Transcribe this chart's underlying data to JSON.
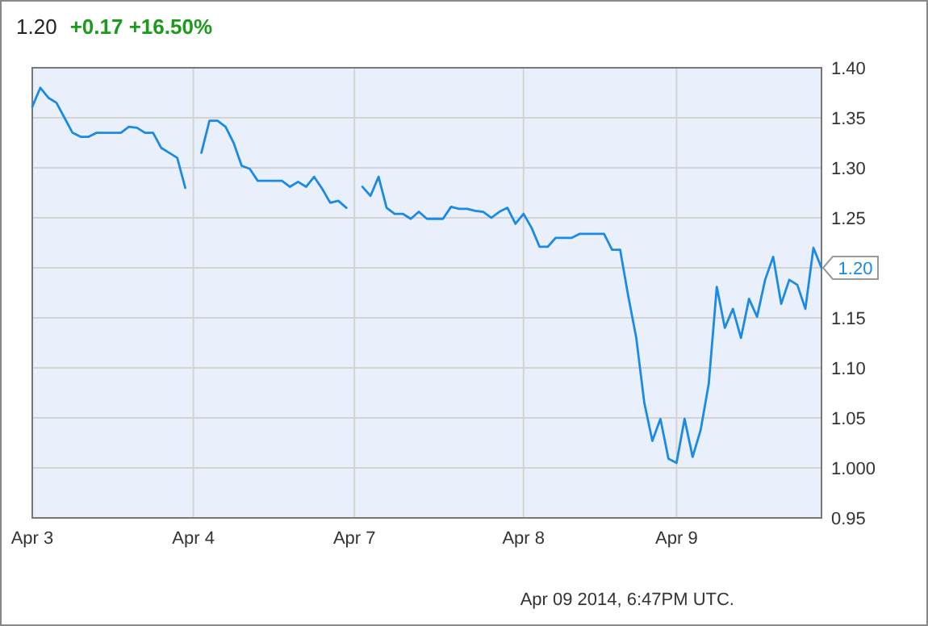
{
  "chart_data": {
    "type": "line",
    "title": "1.20",
    "subtitle": "+0.17  +16.50%",
    "categories": [
      "Apr 3",
      null,
      null,
      null,
      null,
      null,
      null,
      null,
      null,
      null,
      null,
      null,
      null,
      null,
      null,
      null,
      null,
      null,
      null,
      null,
      "Apr 4",
      null,
      null,
      null,
      null,
      null,
      null,
      null,
      null,
      null,
      null,
      null,
      null,
      null,
      null,
      null,
      null,
      null,
      null,
      null,
      "Apr 7",
      null,
      null,
      null,
      null,
      null,
      null,
      null,
      null,
      null,
      null,
      null,
      null,
      null,
      null,
      null,
      null,
      null,
      null,
      null,
      null,
      "Apr 8",
      null,
      null,
      null,
      null,
      null,
      null,
      null,
      null,
      null,
      null,
      null,
      null,
      null,
      null,
      null,
      null,
      null,
      null,
      "Apr 9",
      null,
      null,
      null,
      null,
      null,
      null,
      null,
      null,
      null,
      null,
      null,
      null,
      null,
      null,
      null,
      null,
      null,
      null
    ],
    "series": [
      {
        "color": "#1a8ae6",
        "values": [
          1.361,
          1.38,
          1.37,
          1.365,
          1.35,
          1.335,
          1.331,
          1.331,
          1.335,
          1.335,
          1.335,
          1.335,
          1.341,
          1.34,
          1.335,
          1.335,
          1.32,
          1.315,
          1.31,
          1.28,
          null,
          1.315,
          1.347,
          1.347,
          1.341,
          1.325,
          1.302,
          1.299,
          1.287,
          1.287,
          1.287,
          1.287,
          1.281,
          1.286,
          1.281,
          1.291,
          1.279,
          1.265,
          1.267,
          1.26,
          null,
          1.281,
          1.272,
          1.291,
          1.26,
          1.254,
          1.254,
          1.249,
          1.256,
          1.249,
          1.249,
          1.249,
          1.261,
          1.259,
          1.259,
          1.257,
          1.256,
          1.25,
          1.256,
          1.26,
          1.244,
          1.254,
          1.24,
          1.221,
          1.221,
          1.23,
          1.23,
          1.23,
          1.234,
          1.234,
          1.234,
          1.234,
          1.218,
          1.218,
          1.172,
          1.13,
          1.065,
          1.027,
          1.049,
          1.009,
          1.005,
          1.049,
          1.011,
          1.038,
          1.084,
          1.181,
          1.14,
          1.159,
          1.13,
          1.169,
          1.151,
          1.188,
          1.211,
          1.164,
          1.188,
          1.183,
          1.159,
          1.22,
          1.2
        ]
      }
    ],
    "ylim": [
      0.95,
      1.4
    ],
    "yticks": [
      {
        "value": 0.95,
        "label": "0.95"
      },
      {
        "value": 1,
        "label": "1.000"
      },
      {
        "value": 1.05,
        "label": "1.05"
      },
      {
        "value": 1.1,
        "label": "1.10"
      },
      {
        "value": 1.15,
        "label": "1.15"
      },
      {
        "value": 1.2,
        "label": null
      },
      {
        "value": 1.25,
        "label": "1.25"
      },
      {
        "value": 1.3,
        "label": "1.30"
      },
      {
        "value": 1.35,
        "label": "1.35"
      },
      {
        "value": 1.4,
        "label": "1.40"
      }
    ],
    "grid": true,
    "marker": "none",
    "line_style": "solid",
    "annotations": [
      "1.20",
      "Apr 09 2014, 6:47PM UTC."
    ]
  }
}
